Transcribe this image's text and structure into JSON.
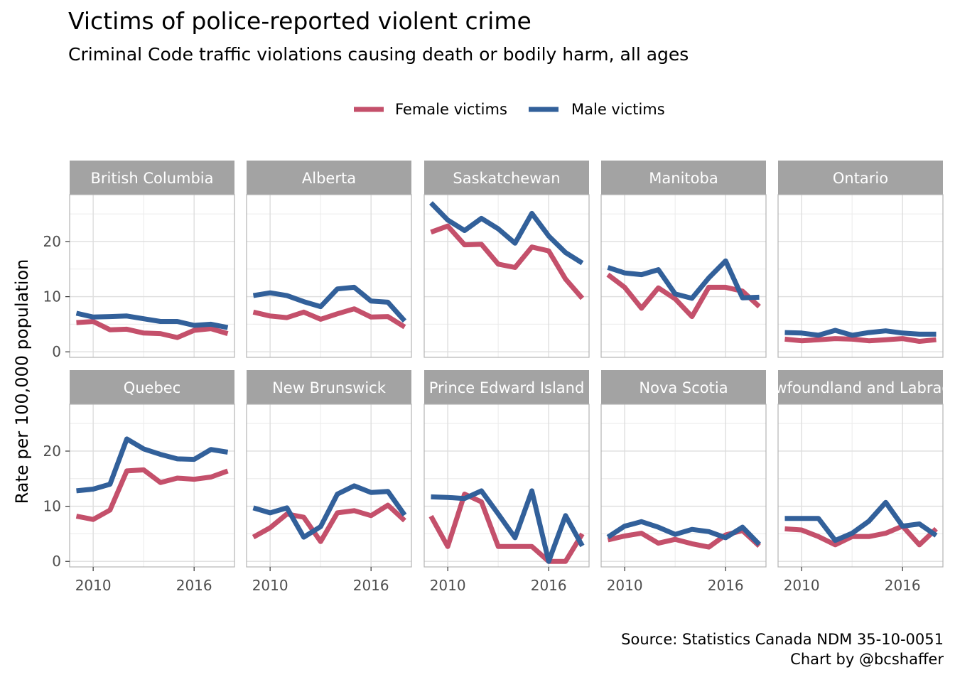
{
  "title": "Victims of police-reported violent crime",
  "subtitle": "Criminal Code traffic violations causing death or bodily harm, all ages",
  "caption_line1": "Source: Statistics Canada NDM 35-10-0051",
  "caption_line2": "Chart by @bcshaffer",
  "chart_data": {
    "type": "line",
    "facet_layout": "2 rows x 5 columns",
    "ylabel": "Rate per 100,000 population",
    "xlabel": "",
    "x": [
      2009,
      2010,
      2011,
      2012,
      2013,
      2014,
      2015,
      2016,
      2017,
      2018
    ],
    "xticks": [
      2010,
      2016
    ],
    "yticks": [
      0,
      10,
      20
    ],
    "ylim": [
      -1,
      28.5
    ],
    "xlim": [
      2008.6,
      2018.4
    ],
    "legend_position": "top",
    "grid": true,
    "colors": {
      "Female victims": "#c4506b",
      "Male victims": "#32609a",
      "strip": "#a3a3a3"
    },
    "legend": [
      "Female victims",
      "Male victims"
    ],
    "panels": [
      {
        "name": "British Columbia",
        "series": [
          {
            "name": "Female victims",
            "values": [
              5.3,
              5.5,
              4.0,
              4.1,
              3.4,
              3.3,
              2.6,
              3.9,
              4.2,
              3.3
            ]
          },
          {
            "name": "Male victims",
            "values": [
              7.0,
              6.3,
              6.4,
              6.5,
              6.0,
              5.5,
              5.5,
              4.8,
              5.0,
              4.4
            ]
          }
        ]
      },
      {
        "name": "Alberta",
        "series": [
          {
            "name": "Female victims",
            "values": [
              7.2,
              6.5,
              6.2,
              7.2,
              5.9,
              6.9,
              7.8,
              6.3,
              6.4,
              4.5
            ]
          },
          {
            "name": "Male victims",
            "values": [
              10.2,
              10.7,
              10.2,
              9.1,
              8.2,
              11.4,
              11.7,
              9.2,
              9.0,
              5.6
            ]
          }
        ]
      },
      {
        "name": "Saskatchewan",
        "series": [
          {
            "name": "Female victims",
            "values": [
              21.7,
              22.8,
              19.4,
              19.5,
              15.9,
              15.3,
              19.0,
              18.3,
              13.2,
              9.7
            ]
          },
          {
            "name": "Male victims",
            "values": [
              27.0,
              23.9,
              22.0,
              24.2,
              22.3,
              19.7,
              25.1,
              21.0,
              18.0,
              16.1
            ]
          }
        ]
      },
      {
        "name": "Manitoba",
        "series": [
          {
            "name": "Female victims",
            "values": [
              14.0,
              11.7,
              7.9,
              11.6,
              9.6,
              6.4,
              11.7,
              11.7,
              11.0,
              8.2
            ]
          },
          {
            "name": "Male victims",
            "values": [
              15.3,
              14.3,
              14.0,
              14.9,
              10.5,
              9.7,
              13.4,
              16.5,
              9.8,
              9.9
            ]
          }
        ]
      },
      {
        "name": "Ontario",
        "series": [
          {
            "name": "Female victims",
            "values": [
              2.3,
              2.0,
              2.2,
              2.4,
              2.3,
              2.0,
              2.2,
              2.4,
              1.9,
              2.2
            ]
          },
          {
            "name": "Male victims",
            "values": [
              3.5,
              3.4,
              3.0,
              3.9,
              3.0,
              3.5,
              3.8,
              3.4,
              3.2,
              3.2
            ]
          }
        ]
      },
      {
        "name": "Quebec",
        "series": [
          {
            "name": "Female victims",
            "values": [
              8.2,
              7.6,
              9.3,
              16.4,
              16.6,
              14.3,
              15.1,
              14.9,
              15.3,
              16.4
            ]
          },
          {
            "name": "Male victims",
            "values": [
              12.8,
              13.1,
              14.0,
              22.2,
              20.4,
              19.4,
              18.6,
              18.5,
              20.3,
              19.8
            ]
          }
        ]
      },
      {
        "name": "New Brunswick",
        "series": [
          {
            "name": "Female victims",
            "values": [
              4.4,
              6.1,
              8.6,
              8.0,
              3.6,
              8.8,
              9.2,
              8.3,
              10.2,
              7.4
            ]
          },
          {
            "name": "Male victims",
            "values": [
              9.7,
              8.8,
              9.7,
              4.4,
              6.3,
              12.2,
              13.7,
              12.5,
              12.7,
              8.4
            ]
          }
        ]
      },
      {
        "name": "Prince Edward Island",
        "series": [
          {
            "name": "Female victims",
            "values": [
              8.2,
              2.7,
              12.2,
              10.8,
              2.7,
              2.7,
              2.7,
              0.0,
              0.0,
              5.0
            ]
          },
          {
            "name": "Male victims",
            "values": [
              11.7,
              11.6,
              11.4,
              12.8,
              8.6,
              4.3,
              12.8,
              0.0,
              8.3,
              2.8
            ]
          }
        ]
      },
      {
        "name": "Nova Scotia",
        "series": [
          {
            "name": "Female victims",
            "values": [
              3.9,
              4.6,
              5.1,
              3.3,
              4.0,
              3.2,
              2.6,
              4.8,
              5.6,
              2.8
            ]
          },
          {
            "name": "Male victims",
            "values": [
              4.4,
              6.4,
              7.2,
              6.2,
              4.9,
              5.8,
              5.4,
              4.3,
              6.2,
              3.1
            ]
          }
        ]
      },
      {
        "name": "Newfoundland and Labrador",
        "series": [
          {
            "name": "Female victims",
            "values": [
              5.9,
              5.7,
              4.5,
              3.0,
              4.5,
              4.5,
              5.1,
              6.4,
              3.0,
              5.9
            ]
          },
          {
            "name": "Male victims",
            "values": [
              7.8,
              7.8,
              7.8,
              3.8,
              5.1,
              7.3,
              10.7,
              6.4,
              6.8,
              4.7
            ]
          }
        ]
      }
    ]
  }
}
